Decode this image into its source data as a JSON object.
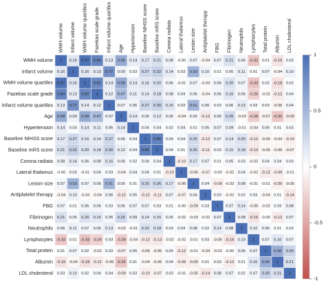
{
  "chart_data": {
    "type": "heatmap",
    "categories": [
      "WMH volume",
      "Infarct volume",
      "WMH volume quartiles",
      "Fazekas scale grade",
      "Infarct volume quartiles",
      "Age",
      "Hypertension",
      "Baseline NIHSS score",
      "Baseline mRS score",
      "Corona radiata",
      "Lateral thalamus",
      "Lesion size",
      "Antiplatelet therapy",
      "FBG",
      "Fibrinogen",
      "Neutrophils",
      "Lymphocytes",
      "Total protein",
      "Albumin",
      "LDL cholesterol"
    ],
    "values": [
      [
        1,
        0.16,
        0.97,
        0.84,
        0.13,
        0.58,
        0.14,
        0.17,
        0.21,
        0.08,
        0,
        0.07,
        -0.04,
        0.07,
        0.21,
        0.06,
        -0.32,
        0.01,
        -0.16,
        0.03
      ],
      [
        0.16,
        1,
        0.16,
        0.13,
        0.77,
        0.09,
        0.03,
        0.27,
        0.32,
        0.14,
        0.03,
        0.53,
        0.1,
        0.01,
        0.05,
        0.11,
        0.01,
        0.07,
        -0.04,
        0.1
      ],
      [
        0.97,
        0.16,
        1,
        0.82,
        0.14,
        0.58,
        0.14,
        0.16,
        0.2,
        0.06,
        -0.01,
        0.07,
        -0.03,
        0.06,
        0.2,
        0.07,
        -0.33,
        0.02,
        -0.18,
        0.02
      ],
      [
        0.84,
        0.13,
        0.82,
        1,
        0.12,
        0.47,
        0.11,
        0.14,
        0.18,
        0.08,
        0.04,
        0.06,
        -0.04,
        0.06,
        0.16,
        0.06,
        -0.26,
        -0.02,
        -0.12,
        0.04
      ],
      [
        0.13,
        0.77,
        0.14,
        0.12,
        1,
        0.07,
        0.06,
        0.27,
        0.3,
        0.16,
        0.03,
        0.51,
        0.06,
        0.03,
        0.06,
        0.13,
        0.03,
        0.03,
        -0.06,
        0.04
      ],
      [
        0.58,
        0.09,
        0.58,
        0.47,
        0.07,
        1,
        0.14,
        0.06,
        0.12,
        0.06,
        -0.04,
        0.05,
        -0.12,
        0.06,
        0.25,
        -0.03,
        -0.28,
        -0.07,
        -0.32,
        -0.09
      ],
      [
        0.14,
        0.03,
        0.14,
        0.11,
        0.06,
        0.14,
        1,
        0.04,
        0.04,
        0.02,
        0.04,
        0.01,
        0.05,
        0.07,
        0.09,
        -0.01,
        -0.04,
        0.05,
        0.01,
        0.03
      ],
      [
        0.17,
        0.27,
        0.16,
        0.14,
        0.27,
        0.06,
        0.04,
        1,
        0.86,
        0.04,
        0.04,
        0.25,
        -0.12,
        0.07,
        0.14,
        0.2,
        -0.12,
        -0.06,
        -0.04,
        -0.1
      ],
      [
        0.21,
        0.32,
        0.2,
        0.18,
        0.3,
        0.12,
        0.04,
        0.86,
        1,
        0.04,
        0.01,
        0.26,
        -0.11,
        0.03,
        0.15,
        0.18,
        -0.13,
        -0.05,
        -0.06,
        -0.07
      ],
      [
        0.08,
        0.14,
        0.06,
        0.08,
        0.16,
        0.06,
        0.02,
        0.04,
        0.04,
        1,
        -0.1,
        0.17,
        0.07,
        0.01,
        0.05,
        0.03,
        -0.02,
        0.04,
        0.04,
        0.03
      ],
      [
        0,
        0.03,
        -0.01,
        0.04,
        0.03,
        -0.04,
        0.04,
        0.04,
        0.01,
        -0.1,
        1,
        -0.06,
        -0.07,
        0,
        -0.02,
        0.04,
        -0.02,
        -0.12,
        -0.09,
        -0.01
      ],
      [
        0.07,
        0.53,
        0.07,
        0.06,
        0.51,
        0.05,
        0.01,
        0.25,
        0.26,
        0.17,
        -0.06,
        1,
        0.04,
        -0.09,
        -0.03,
        0.08,
        -0.01,
        -0.01,
        -0.09,
        -0.05
      ],
      [
        -0.04,
        0.1,
        -0.03,
        -0.04,
        0.06,
        -0.12,
        0.05,
        -0.12,
        -0.11,
        0.07,
        -0.07,
        0.04,
        1,
        0.03,
        -0.02,
        0.02,
        0.03,
        -0.04,
        0.01,
        -0.14
      ],
      [
        0.07,
        0.01,
        0.06,
        0.06,
        0.03,
        0.06,
        0.07,
        0.07,
        0.03,
        0.01,
        0,
        -0.09,
        0.03,
        1,
        0.07,
        0.14,
        -0.05,
        -0.02,
        0.03,
        0.08
      ],
      [
        0.21,
        0.05,
        0.2,
        0.16,
        0.06,
        0.25,
        0.09,
        0.14,
        0.15,
        0.05,
        -0.02,
        -0.03,
        -0.02,
        0.07,
        1,
        0.08,
        -0.16,
        0,
        -0.12,
        0.07
      ],
      [
        0.06,
        0.11,
        0.07,
        0.06,
        0.13,
        -0.03,
        -0.01,
        0.2,
        0.18,
        0.03,
        0.04,
        0.08,
        0.02,
        0.14,
        0.08,
        1,
        0.1,
        0.06,
        0.01,
        0.02
      ],
      [
        -0.32,
        0.01,
        -0.33,
        -0.26,
        0.03,
        -0.28,
        -0.04,
        -0.12,
        -0.13,
        -0.02,
        -0.02,
        -0.01,
        0.03,
        -0.05,
        -0.16,
        0.1,
        1,
        0.07,
        0.16,
        0.07
      ],
      [
        0.01,
        0.07,
        0.02,
        -0.02,
        0.03,
        -0.07,
        0.05,
        -0.06,
        -0.05,
        0.04,
        -0.12,
        -0.01,
        -0.04,
        -0.02,
        0,
        0.06,
        0.07,
        1,
        0.56,
        0.3
      ],
      [
        -0.16,
        -0.04,
        -0.18,
        -0.12,
        -0.06,
        -0.32,
        0.01,
        -0.04,
        -0.06,
        0.04,
        -0.09,
        -0.09,
        0.01,
        0.03,
        -0.12,
        0.01,
        0.16,
        0.56,
        1,
        0.21
      ],
      [
        0.03,
        0.1,
        0.02,
        0.04,
        0.04,
        -0.09,
        0.03,
        -0.1,
        -0.07,
        0.03,
        -0.01,
        -0.05,
        -0.14,
        0.08,
        0.07,
        0.02,
        0.07,
        0.3,
        0.21,
        1
      ]
    ],
    "value_labels": [
      [
        "1",
        "0.16",
        "0.97",
        "0.84",
        "0.13",
        "0.58",
        "0.14",
        "0.17",
        "0.21",
        "0.08",
        "-0.00",
        "0.07",
        "-0.04",
        "0.07",
        "0.21",
        "0.06",
        "-0.32",
        "0.01",
        "-0.16",
        "0.03"
      ],
      [
        "0.16",
        "1",
        "0.16",
        "0.13",
        "0.77",
        "0.09",
        "0.03",
        "0.27",
        "0.32",
        "0.14",
        "0.03",
        "0.53",
        "0.10",
        "0.01",
        "0.05",
        "0.11",
        "0.01",
        "0.07",
        "-0.04",
        "0.10"
      ],
      [
        "0.97",
        "0.16",
        "1",
        "0.82",
        "0.14",
        "0.58",
        "0.14",
        "0.16",
        "0.20",
        "0.06",
        "-0.01",
        "0.07",
        "-0.03",
        "0.06",
        "0.20",
        "0.07",
        "-0.33",
        "0.02",
        "-0.18",
        "0.02"
      ],
      [
        "0.84",
        "0.13",
        "0.82",
        "1",
        "0.12",
        "0.47",
        "0.11",
        "0.14",
        "0.18",
        "0.08",
        "0.04",
        "0.06",
        "-0.04",
        "0.06",
        "0.16",
        "0.06",
        "-0.26",
        "-0.02",
        "-0.12",
        "0.04"
      ],
      [
        "0.13",
        "0.77",
        "0.14",
        "0.12",
        "1",
        "0.07",
        "0.06",
        "0.27",
        "0.30",
        "0.16",
        "0.03",
        "0.51",
        "0.06",
        "0.03",
        "0.06",
        "0.13",
        "0.03",
        "0.03",
        "-0.06",
        "0.04"
      ],
      [
        "0.58",
        "0.09",
        "0.58",
        "0.47",
        "0.07",
        "1",
        "0.14",
        "0.06",
        "0.12",
        "0.06",
        "-0.04",
        "0.05",
        "-0.12",
        "0.06",
        "0.25",
        "-0.03",
        "-0.28",
        "-0.07",
        "-0.32",
        "-0.09"
      ],
      [
        "0.14",
        "0.03",
        "0.14",
        "0.11",
        "0.06",
        "0.14",
        "1",
        "0.04",
        "0.04",
        "0.02",
        "0.04",
        "0.01",
        "0.05",
        "0.07",
        "0.09",
        "-0.01",
        "-0.04",
        "0.05",
        "0.01",
        "0.03"
      ],
      [
        "0.17",
        "0.27",
        "0.16",
        "0.14",
        "0.27",
        "0.06",
        "0.04",
        "1",
        "0.86",
        "0.04",
        "0.04",
        "0.25",
        "-0.12",
        "0.07",
        "0.14",
        "0.20",
        "-0.12",
        "-0.06",
        "-0.04",
        "-0.10"
      ],
      [
        "0.21",
        "0.32",
        "0.20",
        "0.18",
        "0.30",
        "0.12",
        "0.04",
        "0.86",
        "1",
        "0.04",
        "0.01",
        "0.26",
        "-0.11",
        "0.03",
        "0.15",
        "0.18",
        "-0.13",
        "-0.05",
        "-0.06",
        "-0.07"
      ],
      [
        "0.08",
        "0.14",
        "0.06",
        "0.08",
        "0.16",
        "0.06",
        "0.02",
        "0.04",
        "0.04",
        "1",
        "-0.10",
        "0.17",
        "0.07",
        "0.01",
        "0.05",
        "0.03",
        "-0.02",
        "0.04",
        "0.04",
        "0.03"
      ],
      [
        "-0.00",
        "0.03",
        "-0.01",
        "0.04",
        "0.03",
        "-0.04",
        "0.04",
        "0.04",
        "0.01",
        "-0.10",
        "1",
        "-0.06",
        "-0.07",
        "-0.00",
        "-0.02",
        "0.04",
        "-0.02",
        "-0.12",
        "-0.09",
        "-0.01"
      ],
      [
        "0.07",
        "0.53",
        "0.07",
        "0.06",
        "0.51",
        "0.05",
        "0.01",
        "0.25",
        "0.26",
        "0.17",
        "-0.06",
        "1",
        "0.04",
        "-0.09",
        "-0.03",
        "0.08",
        "-0.01",
        "-0.01",
        "-0.09",
        "-0.05"
      ],
      [
        "-0.04",
        "0.10",
        "-0.03",
        "-0.04",
        "0.06",
        "-0.12",
        "0.05",
        "-0.12",
        "-0.11",
        "0.07",
        "-0.07",
        "0.04",
        "1",
        "0.03",
        "-0.02",
        "0.02",
        "0.03",
        "-0.04",
        "0.01",
        "-0.14"
      ],
      [
        "0.07",
        "0.01",
        "0.06",
        "0.06",
        "0.03",
        "0.06",
        "0.07",
        "0.07",
        "0.03",
        "0.01",
        "-0.00",
        "-0.09",
        "0.03",
        "1",
        "0.07",
        "0.14",
        "-0.05",
        "-0.02",
        "0.03",
        "0.08"
      ],
      [
        "0.21",
        "0.05",
        "0.20",
        "0.16",
        "0.06",
        "0.25",
        "0.09",
        "0.14",
        "0.15",
        "0.05",
        "-0.02",
        "-0.03",
        "-0.02",
        "0.07",
        "1",
        "0.08",
        "-0.16",
        "-0.00",
        "-0.12",
        "0.07"
      ],
      [
        "0.06",
        "0.11",
        "0.07",
        "0.06",
        "0.13",
        "-0.03",
        "-0.01",
        "0.20",
        "0.18",
        "0.03",
        "0.04",
        "0.08",
        "0.02",
        "0.14",
        "0.08",
        "1",
        "0.10",
        "0.06",
        "0.01",
        "0.02"
      ],
      [
        "-0.32",
        "0.01",
        "-0.33",
        "-0.26",
        "0.03",
        "-0.28",
        "-0.04",
        "-0.12",
        "-0.13",
        "-0.02",
        "-0.02",
        "-0.01",
        "0.03",
        "-0.05",
        "-0.16",
        "0.10",
        "1",
        "0.07",
        "0.16",
        "0.07"
      ],
      [
        "0.01",
        "0.07",
        "0.02",
        "-0.02",
        "0.03",
        "-0.07",
        "0.05",
        "-0.06",
        "-0.05",
        "0.04",
        "-0.12",
        "-0.01",
        "-0.04",
        "-0.02",
        "-0.00",
        "0.06",
        "0.07",
        "1",
        "0.56",
        "0.30"
      ],
      [
        "-0.16",
        "-0.04",
        "-0.18",
        "-0.12",
        "-0.06",
        "-0.32",
        "0.01",
        "-0.04",
        "-0.06",
        "0.04",
        "-0.09",
        "-0.09",
        "0.01",
        "0.03",
        "-0.12",
        "0.01",
        "0.16",
        "0.56",
        "1",
        "0.21"
      ],
      [
        "0.03",
        "0.10",
        "0.02",
        "0.04",
        "0.04",
        "-0.09",
        "0.03",
        "-0.10",
        "-0.07",
        "0.03",
        "-0.01",
        "-0.05",
        "-0.14",
        "0.08",
        "0.07",
        "0.02",
        "0.07",
        "0.30",
        "0.21",
        "1"
      ]
    ],
    "zlim": [
      -1,
      1
    ],
    "zticks": [
      1,
      0.5,
      0,
      -0.5,
      -1
    ],
    "colormap": {
      "low": "#c0504d",
      "mid": "#ffffff",
      "high": "#4a6fb5"
    }
  }
}
